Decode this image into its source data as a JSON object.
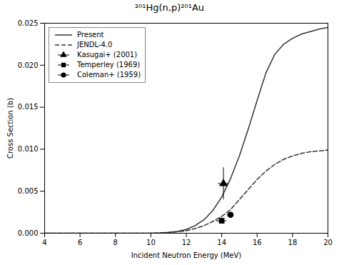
{
  "chart_data": {
    "type": "line",
    "title": "²⁰¹Hg(n,p)²⁰¹Au",
    "xlabel": "Incident Neutron Energy (MeV)",
    "ylabel": "Cross Section (b)",
    "xlim": [
      4,
      20
    ],
    "ylim": [
      0.0,
      0.025
    ],
    "xticks": [
      4,
      6,
      8,
      10,
      12,
      14,
      16,
      18,
      20
    ],
    "yticks": [
      {
        "value": 0.0,
        "label": "0.000"
      },
      0.005,
      {
        "value": 0.01,
        "label": "0.010"
      },
      0.015,
      {
        "value": 0.02,
        "label": "0.020"
      },
      0.025
    ],
    "grid": false,
    "legend": "upper left",
    "series": [
      {
        "name": "Present",
        "type": "line",
        "color": "#333333",
        "line_style": "solid",
        "x": [
          4,
          5,
          6,
          7,
          8,
          9,
          10,
          10.5,
          11,
          11.5,
          12,
          12.5,
          13,
          13.5,
          14,
          14.5,
          15,
          15.5,
          16,
          16.5,
          17,
          17.5,
          18,
          18.5,
          19,
          19.5,
          20
        ],
        "values": [
          0.0,
          0.0,
          0.0,
          0.0,
          0.0,
          0.0,
          1e-05,
          4e-05,
          0.0001,
          0.00022,
          0.00045,
          0.0009,
          0.0016,
          0.0027,
          0.0043,
          0.0065,
          0.0092,
          0.0124,
          0.0158,
          0.0191,
          0.0213,
          0.0225,
          0.0232,
          0.0237,
          0.024,
          0.0243,
          0.0245
        ]
      },
      {
        "name": "JENDL-4.0",
        "type": "line",
        "color": "#333333",
        "line_style": "dashed",
        "x": [
          4,
          5,
          6,
          7,
          8,
          9,
          10,
          10.5,
          11,
          11.5,
          12,
          12.5,
          13,
          13.5,
          14,
          14.5,
          15,
          15.5,
          16,
          16.5,
          17,
          17.5,
          18,
          18.5,
          19,
          19.5,
          20
        ],
        "values": [
          0.0,
          0.0,
          0.0,
          0.0,
          0.0,
          0.0,
          1e-05,
          3e-05,
          8e-05,
          0.00018,
          0.0003,
          0.00055,
          0.0009,
          0.0014,
          0.002,
          0.0028,
          0.004,
          0.0052,
          0.0064,
          0.0074,
          0.0082,
          0.0088,
          0.0092,
          0.0095,
          0.0097,
          0.0098,
          0.0099
        ]
      },
      {
        "name": "Kasugai+ (2001)",
        "type": "scatter",
        "marker": "triangle",
        "color": "#000000",
        "x": [
          14.1
        ],
        "values": [
          0.0059
        ],
        "yerr_lo": [
          0.0019
        ],
        "yerr_hi": [
          0.0019
        ],
        "xerr": [
          0.3
        ]
      },
      {
        "name": "Temperley (1969)",
        "type": "scatter",
        "marker": "square",
        "color": "#000000",
        "x": [
          14.0
        ],
        "values": [
          0.00148
        ],
        "yerr_lo": [
          0.00035
        ],
        "yerr_hi": [
          0.00035
        ],
        "xerr": [
          0.3
        ]
      },
      {
        "name": "Coleman+ (1959)",
        "type": "scatter",
        "marker": "circle",
        "color": "#000000",
        "x": [
          14.5
        ],
        "values": [
          0.0022
        ],
        "yerr_lo": [
          0.0003
        ],
        "yerr_hi": [
          0.0003
        ],
        "xerr": [
          0.2
        ]
      }
    ]
  }
}
